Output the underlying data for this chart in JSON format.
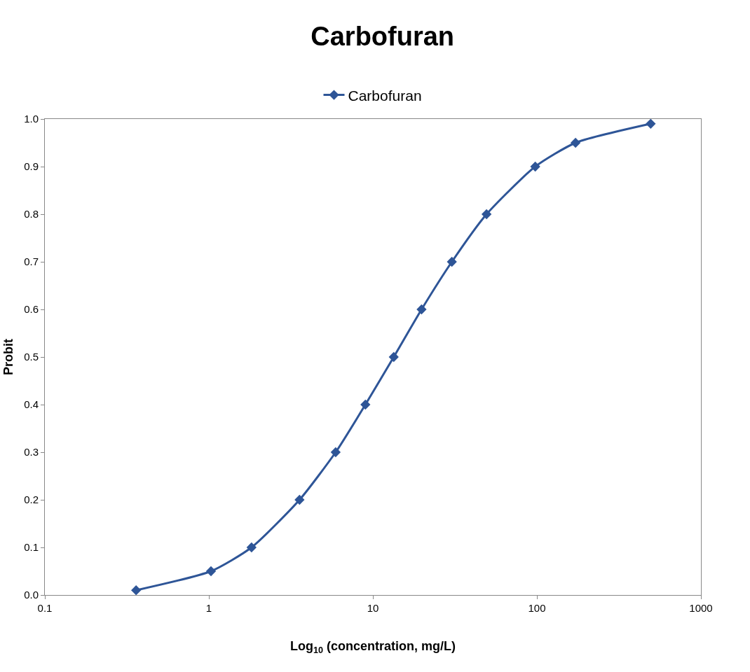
{
  "chart_data": {
    "type": "line",
    "title": "Carbofuran",
    "xlabel": "Log$_{10}$ (concentration, mg/L)",
    "ylabel": "Probit",
    "log": "x",
    "xlim": [
      0.1,
      1000
    ],
    "xticks": [
      0.1,
      1,
      10,
      100,
      1000
    ],
    "ylim": [
      0,
      1
    ],
    "yticks": [
      {
        "value": 0,
        "label": "0.0"
      },
      0.1,
      0.2,
      0.3,
      0.4,
      0.5,
      0.6,
      0.7,
      0.8,
      0.9,
      {
        "value": 1,
        "label": "1.0"
      }
    ],
    "legend": "top",
    "marker": "diamond",
    "line_style": "solid",
    "series": [
      {
        "name": "Carbofuran",
        "color": "#2e5597",
        "x": [
          0.36,
          1.03,
          1.82,
          3.57,
          5.93,
          9.0,
          13.4,
          19.8,
          30.3,
          49.3,
          97.7,
          172,
          494
        ],
        "values": [
          0.01,
          0.05,
          0.1,
          0.2,
          0.3,
          0.4,
          0.5,
          0.6,
          0.7,
          0.8,
          0.9,
          0.95,
          0.99
        ]
      }
    ]
  }
}
